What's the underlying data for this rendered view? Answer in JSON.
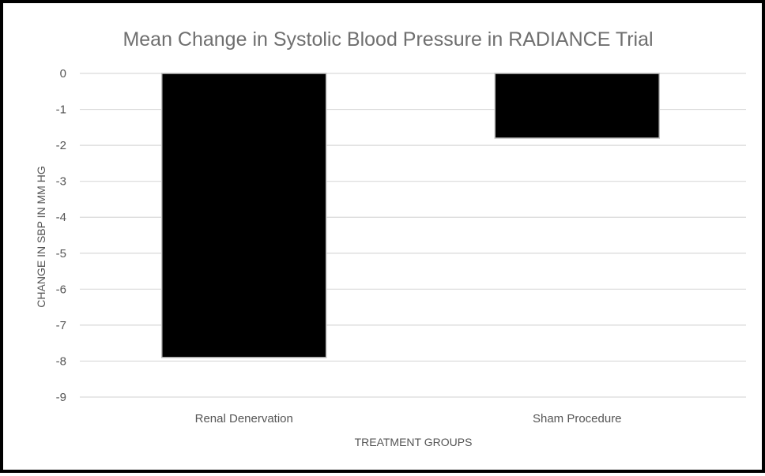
{
  "chart_data": {
    "type": "bar",
    "title": "Mean Change in Systolic Blood Pressure in RADIANCE Trial",
    "xlabel": "TREATMENT GROUPS",
    "ylabel": "CHANGE IN SBP IN MM HG",
    "categories": [
      "Renal Denervation",
      "Sham Procedure"
    ],
    "values": [
      -7.9,
      -1.8
    ],
    "ylim": [
      -9,
      0
    ],
    "yticks": [
      "0",
      "-1",
      "-2",
      "-3",
      "-4",
      "-5",
      "-6",
      "-7",
      "-8",
      "-9"
    ],
    "grid": true,
    "legend": "none",
    "bar_color": "#000000",
    "grid_color": "#d9d9d9"
  }
}
